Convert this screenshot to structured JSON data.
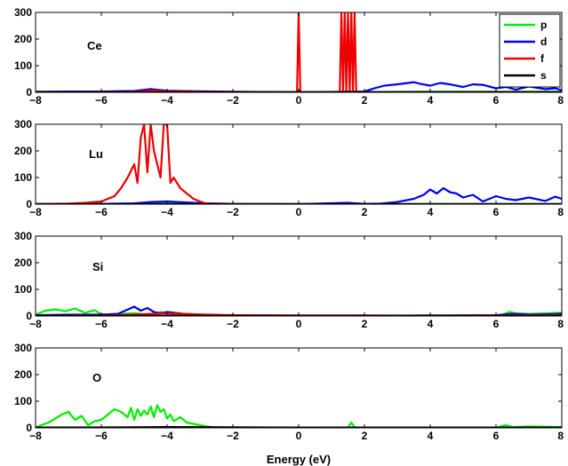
{
  "chart_data": {
    "type": "line",
    "xlabel": "Energy (eV)",
    "xlim": [
      -8,
      8
    ],
    "ylim": [
      0,
      300
    ],
    "xticks": [
      -8,
      -6,
      -4,
      -2,
      0,
      2,
      4,
      6,
      8
    ],
    "xtick_labels": [
      "−8",
      "−6",
      "−4",
      "−2",
      "0",
      "2",
      "4",
      "6",
      "8"
    ],
    "yticks": [
      0,
      100,
      200,
      300
    ],
    "ytick_labels": [
      "0",
      "100",
      "200",
      "300"
    ],
    "grid": false,
    "legend": {
      "placement": "top-right",
      "entries": [
        {
          "label": "p",
          "color": "#00ee00"
        },
        {
          "label": "d",
          "color": "#0000ee"
        },
        {
          "label": "f",
          "color": "#ee0000"
        },
        {
          "label": "s",
          "color": "#000000"
        }
      ]
    },
    "panels": [
      {
        "element": "Ce",
        "series": [
          {
            "name": "p",
            "color": "#00ee00",
            "x": [
              -8,
              -6,
              -4,
              -2,
              0,
              2,
              4,
              6,
              8
            ],
            "y": [
              1,
              1,
              2,
              1,
              0,
              1,
              2,
              2,
              2
            ]
          },
          {
            "name": "d",
            "color": "#0000ee",
            "x": [
              -8,
              -7,
              -6,
              -5,
              -4.5,
              -4,
              -3,
              -2,
              0,
              2,
              2.3,
              2.6,
              3,
              3.5,
              3.7,
              4,
              4.3,
              4.6,
              5,
              5.3,
              5.6,
              6,
              6.3,
              6.6,
              7,
              7.5,
              7.8,
              8
            ],
            "y": [
              2,
              3,
              3,
              5,
              12,
              6,
              4,
              2,
              0,
              3,
              15,
              25,
              30,
              38,
              32,
              25,
              35,
              30,
              20,
              30,
              28,
              15,
              20,
              10,
              22,
              12,
              15,
              8
            ]
          },
          {
            "name": "f",
            "color": "#ee0000",
            "x": [
              -8,
              -5,
              -4.4,
              -4,
              -3.5,
              -3,
              -1,
              -0.05,
              0,
              0.05,
              1,
              1.25,
              1.3,
              1.35,
              1.4,
              1.45,
              1.5,
              1.55,
              1.6,
              1.65,
              1.7,
              1.75,
              2,
              3,
              8
            ],
            "y": [
              1,
              2,
              8,
              3,
              4,
              2,
              1,
              0,
              300,
              0,
              0,
              0,
              300,
              0,
              300,
              0,
              300,
              0,
              300,
              0,
              300,
              0,
              0,
              0,
              0
            ]
          },
          {
            "name": "s",
            "color": "#000000",
            "x": [
              -8,
              8
            ],
            "y": [
              1,
              1
            ]
          }
        ]
      },
      {
        "element": "Lu",
        "series": [
          {
            "name": "p",
            "color": "#00ee00",
            "x": [
              -8,
              -6,
              -4,
              -2,
              0,
              2,
              4,
              6,
              8
            ],
            "y": [
              1,
              1,
              2,
              1,
              0,
              1,
              1,
              1,
              1
            ]
          },
          {
            "name": "d",
            "color": "#0000ee",
            "x": [
              -8,
              -6,
              -5,
              -4.5,
              -4,
              -3,
              -2,
              0,
              1.5,
              2,
              2.5,
              3,
              3.5,
              3.8,
              4,
              4.2,
              4.4,
              4.6,
              4.8,
              5,
              5.3,
              5.6,
              6,
              6.3,
              6.6,
              7,
              7.5,
              7.8,
              8
            ],
            "y": [
              0,
              1,
              3,
              8,
              10,
              4,
              1,
              0,
              5,
              1,
              2,
              8,
              20,
              35,
              55,
              40,
              60,
              45,
              40,
              25,
              35,
              10,
              30,
              20,
              15,
              25,
              12,
              28,
              20
            ]
          },
          {
            "name": "f",
            "color": "#ee0000",
            "x": [
              -8,
              -7,
              -6.5,
              -6,
              -5.6,
              -5.4,
              -5.2,
              -5,
              -4.9,
              -4.8,
              -4.7,
              -4.6,
              -4.5,
              -4.4,
              -4.3,
              -4.2,
              -4.1,
              -4,
              -3.9,
              -3.8,
              -3.6,
              -3.4,
              -3.2,
              -3,
              -2.8,
              -2,
              0,
              8
            ],
            "y": [
              0,
              2,
              5,
              10,
              30,
              60,
              100,
              150,
              80,
              250,
              300,
              120,
              300,
              200,
              150,
              100,
              300,
              300,
              80,
              100,
              60,
              40,
              20,
              10,
              2,
              0,
              0,
              0
            ]
          },
          {
            "name": "s",
            "color": "#000000",
            "x": [
              -8,
              8
            ],
            "y": [
              0,
              0
            ]
          }
        ]
      },
      {
        "element": "Si",
        "series": [
          {
            "name": "p",
            "color": "#00ee00",
            "x": [
              -8,
              -7.7,
              -7.4,
              -7.1,
              -6.8,
              -6.5,
              -6.2,
              -6,
              -5.5,
              -5,
              -4.5,
              -4.2,
              -4,
              -3.5,
              -3,
              -2,
              0,
              2,
              4,
              6,
              6.2,
              6.4,
              6.6,
              7,
              7.5,
              8
            ],
            "y": [
              5,
              20,
              25,
              18,
              28,
              12,
              22,
              5,
              8,
              10,
              5,
              15,
              8,
              5,
              3,
              2,
              1,
              1,
              1,
              2,
              5,
              15,
              10,
              8,
              10,
              12
            ]
          },
          {
            "name": "d",
            "color": "#0000ee",
            "x": [
              -8,
              -7,
              -6,
              -5.5,
              -5,
              -4.8,
              -4.6,
              -4.4,
              -4.2,
              -4,
              -3.5,
              -3,
              -2,
              0,
              2,
              4,
              6,
              6.5,
              7,
              7.5,
              8
            ],
            "y": [
              3,
              5,
              5,
              8,
              35,
              20,
              30,
              15,
              10,
              15,
              8,
              5,
              2,
              1,
              1,
              2,
              3,
              8,
              5,
              6,
              8
            ]
          },
          {
            "name": "f",
            "color": "#ee0000",
            "x": [
              -8,
              -6,
              -5,
              -4.5,
              -4,
              -3.5,
              -3,
              -2,
              0,
              2,
              4,
              6,
              8
            ],
            "y": [
              1,
              2,
              5,
              8,
              10,
              8,
              6,
              3,
              2,
              2,
              1,
              2,
              3
            ]
          },
          {
            "name": "s",
            "color": "#000000",
            "x": [
              -8,
              8
            ],
            "y": [
              1,
              1
            ]
          }
        ]
      },
      {
        "element": "O",
        "series": [
          {
            "name": "p",
            "color": "#00ee00",
            "x": [
              -8,
              -7.6,
              -7.2,
              -7,
              -6.8,
              -6.6,
              -6.4,
              -6.2,
              -6,
              -5.8,
              -5.6,
              -5.4,
              -5.2,
              -5.1,
              -5,
              -4.9,
              -4.8,
              -4.7,
              -4.6,
              -4.5,
              -4.4,
              -4.3,
              -4.2,
              -4.1,
              -4,
              -3.9,
              -3.8,
              -3.6,
              -3.4,
              -3.2,
              -3,
              -2.8,
              -2.6,
              -2,
              0,
              1.5,
              1.6,
              1.7,
              2,
              4,
              6,
              6.3,
              6.5,
              7,
              8
            ],
            "y": [
              2,
              20,
              50,
              60,
              30,
              45,
              10,
              25,
              30,
              50,
              70,
              60,
              40,
              75,
              30,
              70,
              45,
              65,
              50,
              80,
              40,
              85,
              60,
              70,
              35,
              50,
              25,
              40,
              20,
              15,
              10,
              5,
              2,
              0,
              0,
              1,
              20,
              2,
              1,
              1,
              1,
              10,
              3,
              5,
              3
            ]
          },
          {
            "name": "d",
            "color": "#0000ee",
            "x": [
              -8,
              8
            ],
            "y": [
              1,
              1
            ]
          },
          {
            "name": "f",
            "color": "#ee0000",
            "x": [
              -8,
              8
            ],
            "y": [
              0,
              0
            ]
          },
          {
            "name": "s",
            "color": "#000000",
            "x": [
              -8,
              -5,
              -4,
              0,
              8
            ],
            "y": [
              1,
              2,
              3,
              1,
              1
            ]
          }
        ]
      }
    ]
  }
}
